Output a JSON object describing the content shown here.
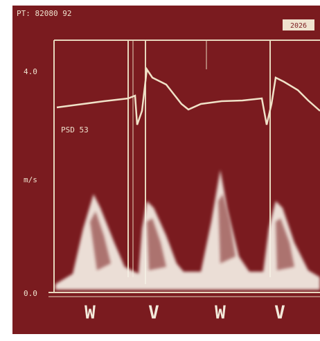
{
  "header": {
    "text": "PT: 82080 92"
  },
  "badge": {
    "text": "2026"
  },
  "axis": {
    "top_label": "4.0",
    "mid_label": "m/s",
    "bottom_label": "0.0"
  },
  "annotation": {
    "text": "PSD 53"
  },
  "footer": {
    "labels": [
      "W",
      "V",
      "W",
      "V"
    ]
  }
}
